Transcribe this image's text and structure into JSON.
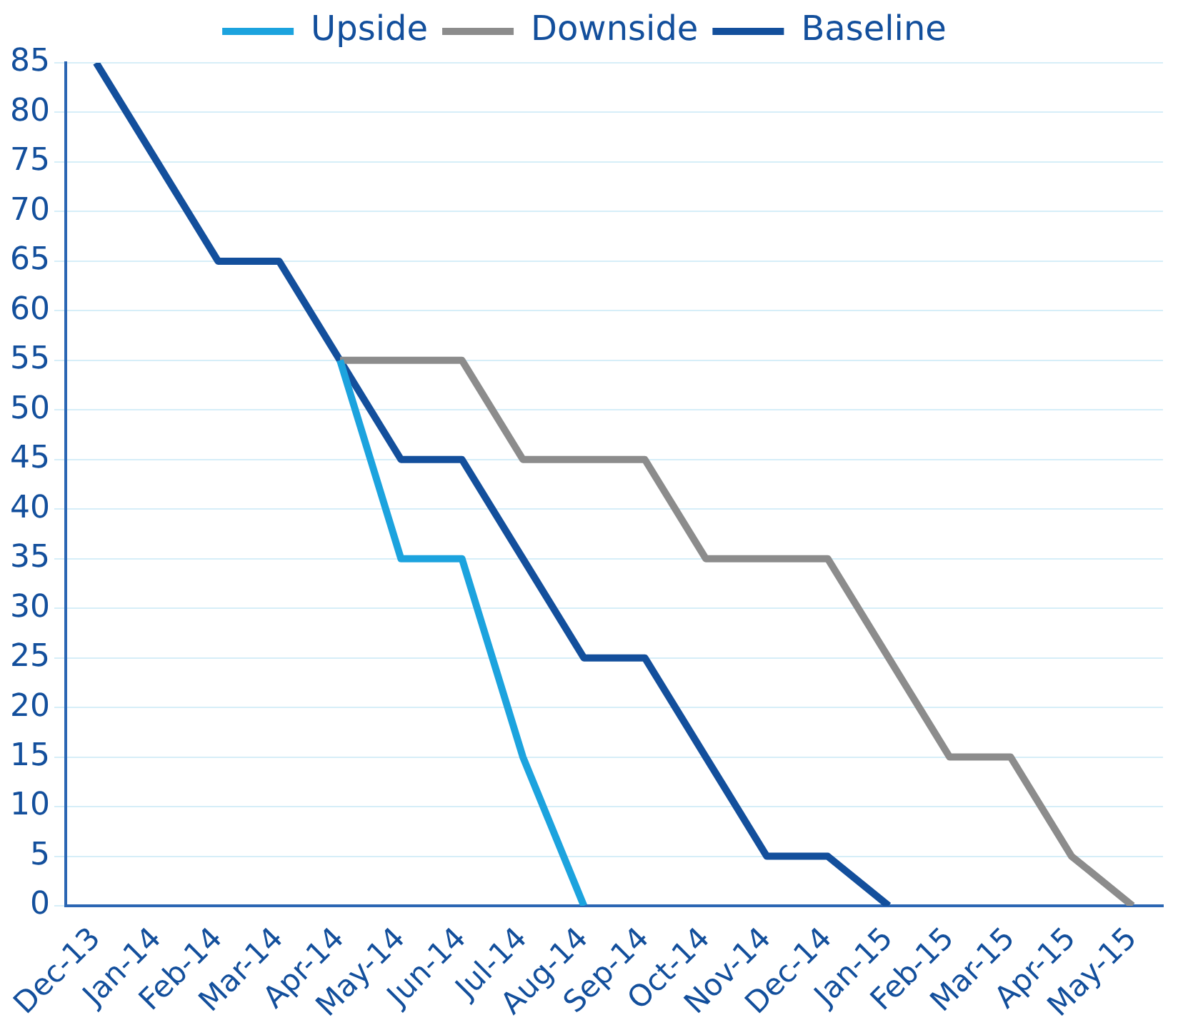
{
  "chart_data": {
    "type": "line",
    "categories": [
      "Dec-13",
      "Jan-14",
      "Feb-14",
      "Mar-14",
      "Apr-14",
      "May-14",
      "Jun-14",
      "Jul-14",
      "Aug-14",
      "Sep-14",
      "Oct-14",
      "Nov-14",
      "Dec-14",
      "Jan-15",
      "Feb-15",
      "Mar-15",
      "Apr-15",
      "May-15"
    ],
    "series": [
      {
        "name": "Upside",
        "color": "#1ca3de",
        "values": [
          null,
          null,
          null,
          null,
          55,
          35,
          35,
          15,
          0,
          null,
          null,
          null,
          null,
          null,
          null,
          null,
          null,
          null
        ]
      },
      {
        "name": "Downside",
        "color": "#8c8c8c",
        "values": [
          null,
          null,
          null,
          null,
          55,
          55,
          55,
          45,
          45,
          45,
          35,
          35,
          35,
          25,
          15,
          15,
          5,
          0
        ]
      },
      {
        "name": "Baseline",
        "color": "#134f9c",
        "values": [
          85,
          75,
          65,
          65,
          55,
          45,
          45,
          35,
          25,
          25,
          15,
          5,
          5,
          0,
          null,
          null,
          null,
          null
        ]
      }
    ],
    "ylim": [
      0,
      85
    ],
    "yticks": [
      0,
      5,
      10,
      15,
      20,
      25,
      30,
      35,
      40,
      45,
      50,
      55,
      60,
      65,
      70,
      75,
      80,
      85
    ],
    "grid": "y",
    "legend": "top",
    "marker": "none",
    "line_style": "solid"
  }
}
